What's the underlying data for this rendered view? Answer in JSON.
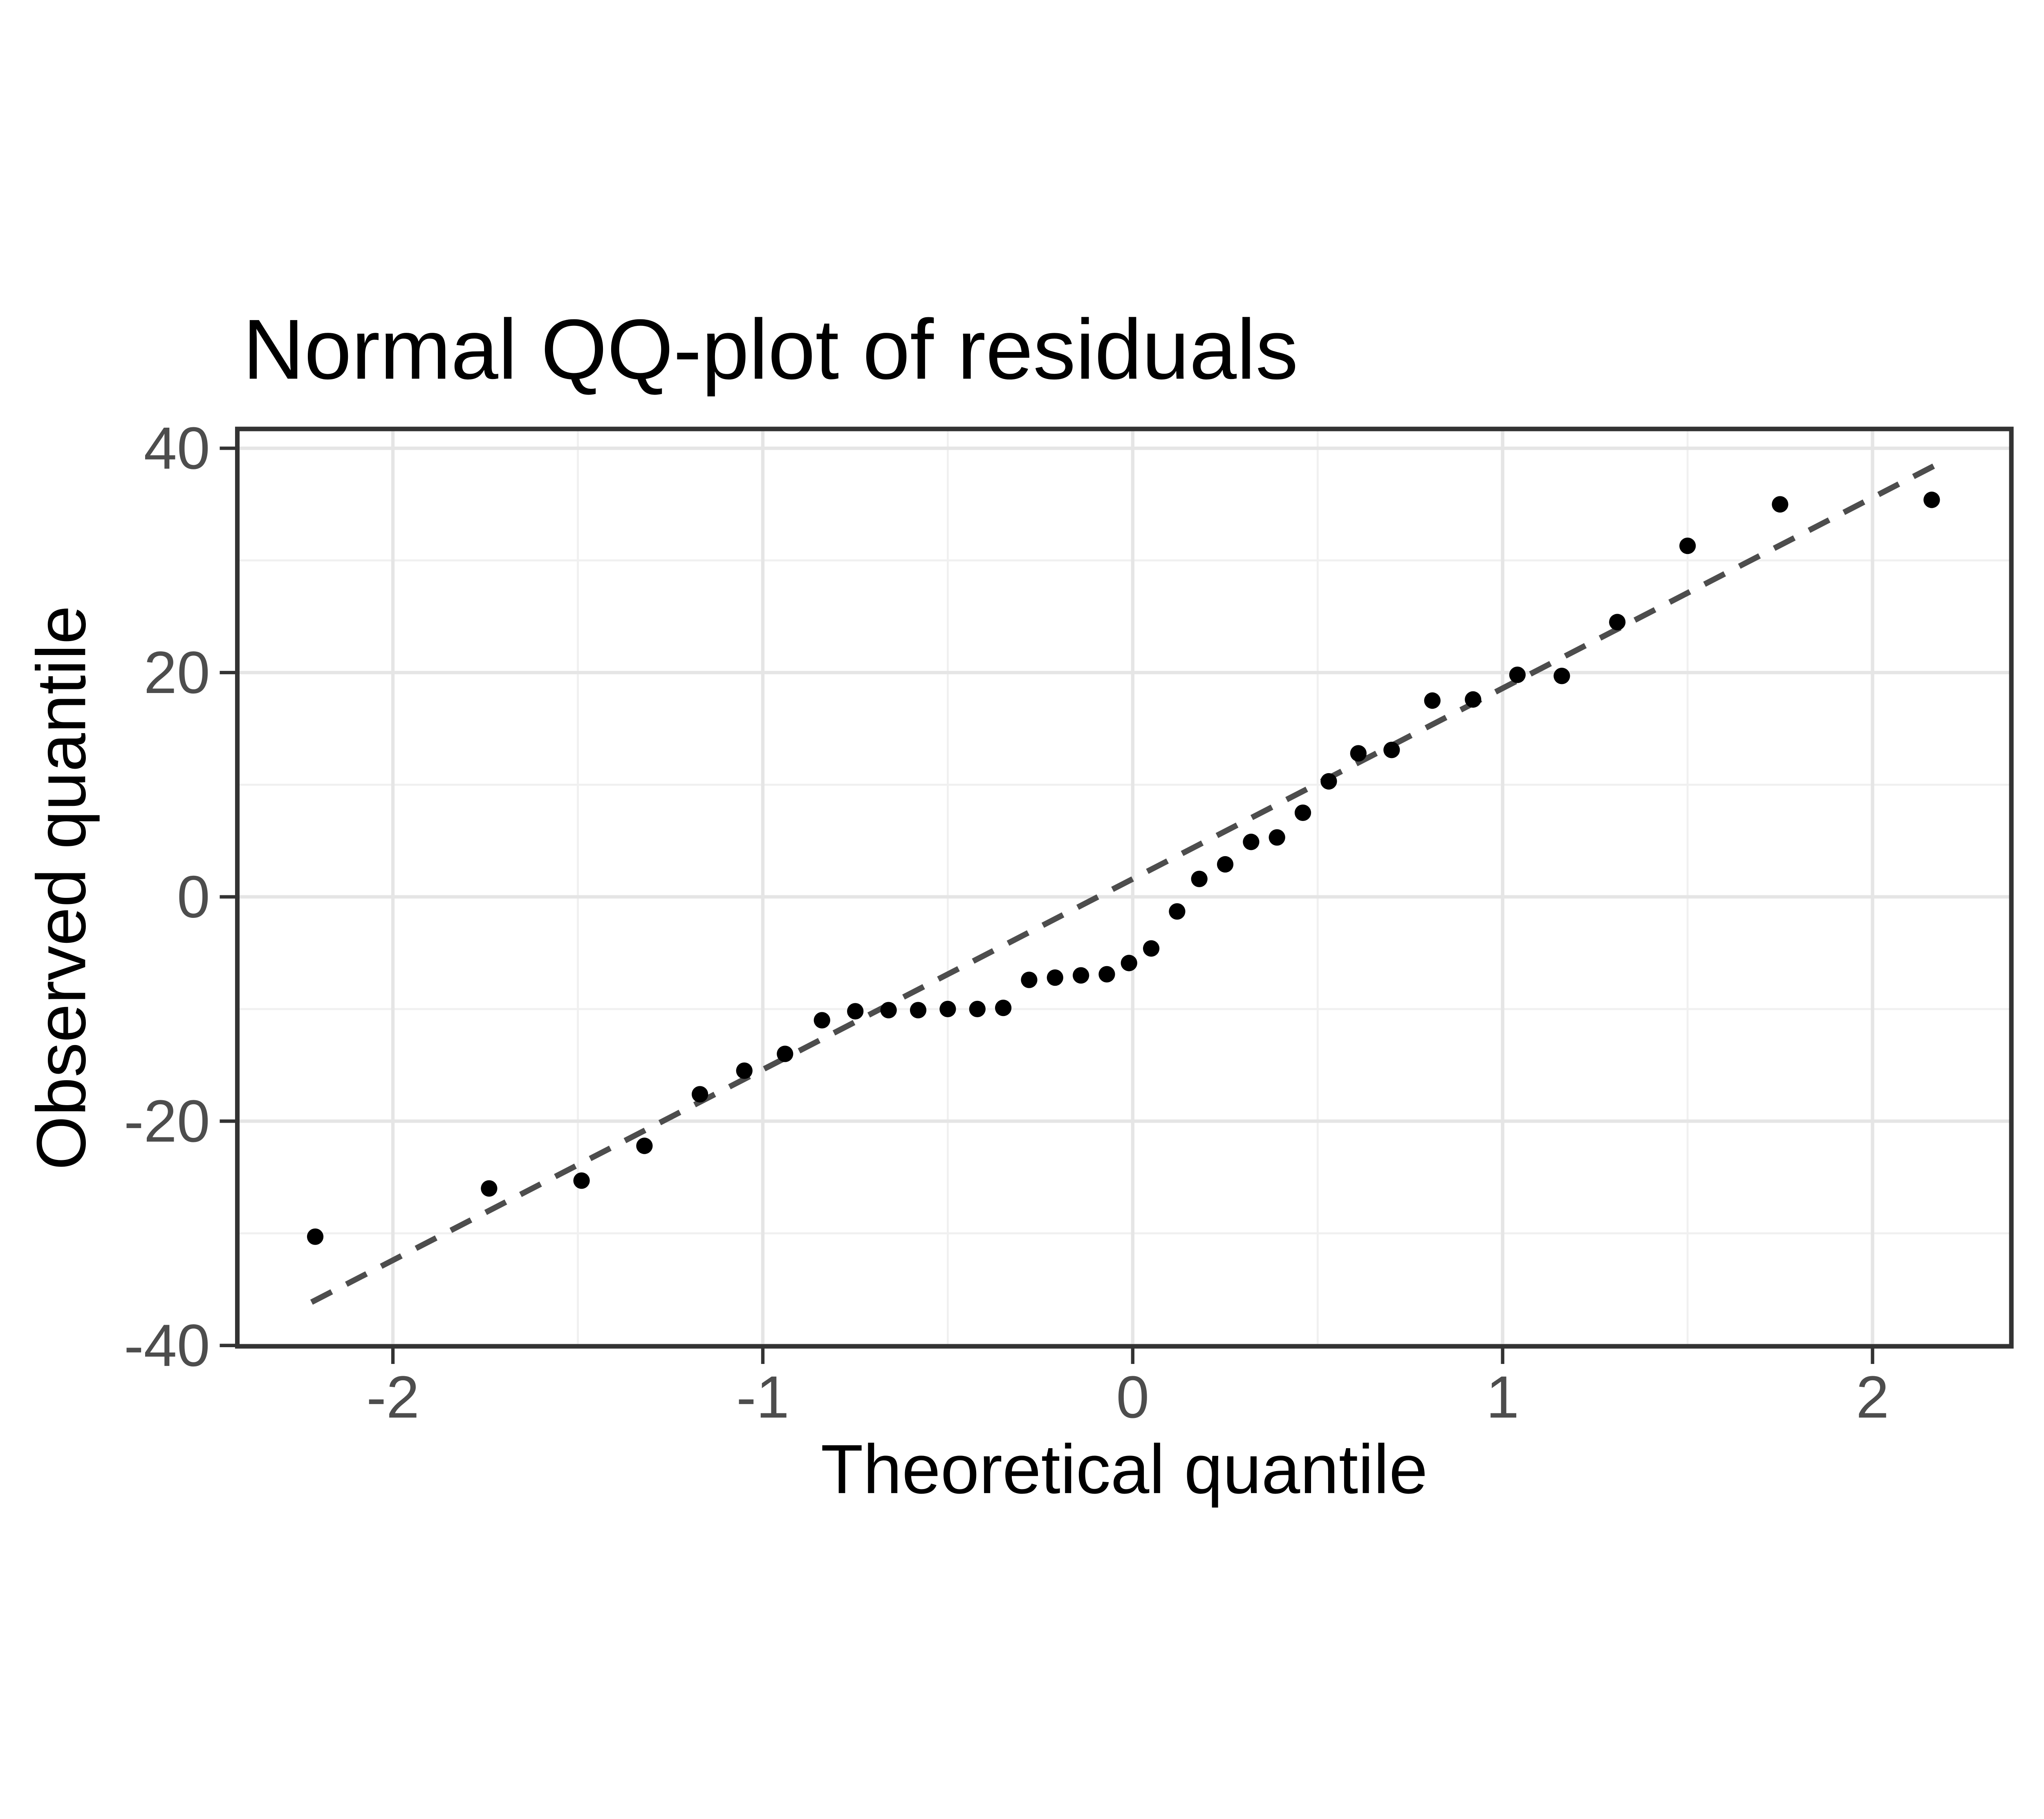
{
  "page_title": "Normal QQ-plot of residuals",
  "chart_data": {
    "type": "scatter",
    "title": "Normal QQ-plot of residuals",
    "xlabel": "Theoretical quantile",
    "ylabel": "Observed quantile",
    "xlim": [
      -2.42,
      2.37
    ],
    "ylim": [
      -40.1,
      41.7
    ],
    "grid": "major-and-minor",
    "legend_position": "none",
    "x_ticks": [
      -2,
      -1,
      0,
      1,
      2
    ],
    "x_tick_labels": [
      "-2",
      "-1",
      "0",
      "1",
      "2"
    ],
    "x_minor_gridlines": [
      -1.5,
      -0.5,
      0.5,
      1.5
    ],
    "y_ticks": [
      -40,
      -20,
      0,
      20,
      40
    ],
    "y_tick_labels": [
      "-40",
      "-20",
      "0",
      "20",
      "40"
    ],
    "y_minor_gridlines": [
      -30,
      -10,
      10,
      30
    ],
    "points": [
      [
        -2.21,
        -30.3
      ],
      [
        -1.74,
        -26.0
      ],
      [
        -1.49,
        -25.3
      ],
      [
        -1.32,
        -22.2
      ],
      [
        -1.17,
        -17.6
      ],
      [
        -1.05,
        -15.5
      ],
      [
        -0.94,
        -14.0
      ],
      [
        -0.84,
        -11.0
      ],
      [
        -0.75,
        -10.2
      ],
      [
        -0.66,
        -10.1
      ],
      [
        -0.58,
        -10.1
      ],
      [
        -0.5,
        -10.0
      ],
      [
        -0.42,
        -10.0
      ],
      [
        -0.35,
        -9.9
      ],
      [
        -0.28,
        -7.4
      ],
      [
        -0.21,
        -7.2
      ],
      [
        -0.14,
        -7.0
      ],
      [
        -0.07,
        -6.9
      ],
      [
        -0.01,
        -5.9
      ],
      [
        0.05,
        -4.6
      ],
      [
        0.12,
        -1.3
      ],
      [
        0.18,
        1.6
      ],
      [
        0.25,
        2.9
      ],
      [
        0.32,
        4.9
      ],
      [
        0.39,
        5.3
      ],
      [
        0.46,
        7.5
      ],
      [
        0.53,
        10.3
      ],
      [
        0.61,
        12.8
      ],
      [
        0.7,
        13.1
      ],
      [
        0.81,
        17.5
      ],
      [
        0.92,
        17.6
      ],
      [
        1.04,
        19.8
      ],
      [
        1.16,
        19.7
      ],
      [
        1.31,
        24.5
      ],
      [
        1.5,
        31.3
      ],
      [
        1.75,
        35.0
      ],
      [
        2.16,
        35.4
      ]
    ],
    "reference_line": {
      "kind": "qq-line",
      "style": "dashed",
      "intercept": 1.6,
      "slope": 17.0,
      "x_start": -2.22,
      "x_end": 2.17
    },
    "colors": {
      "point": "#000000",
      "reference_line": "#4d4d4d",
      "grid_major": "#e5e5e5",
      "grid_minor": "#f0f0f0",
      "panel_border": "#333333",
      "tick_mark": "#333333",
      "tick_text": "#4d4d4d",
      "title_text": "#000000",
      "background": "#ffffff"
    }
  }
}
